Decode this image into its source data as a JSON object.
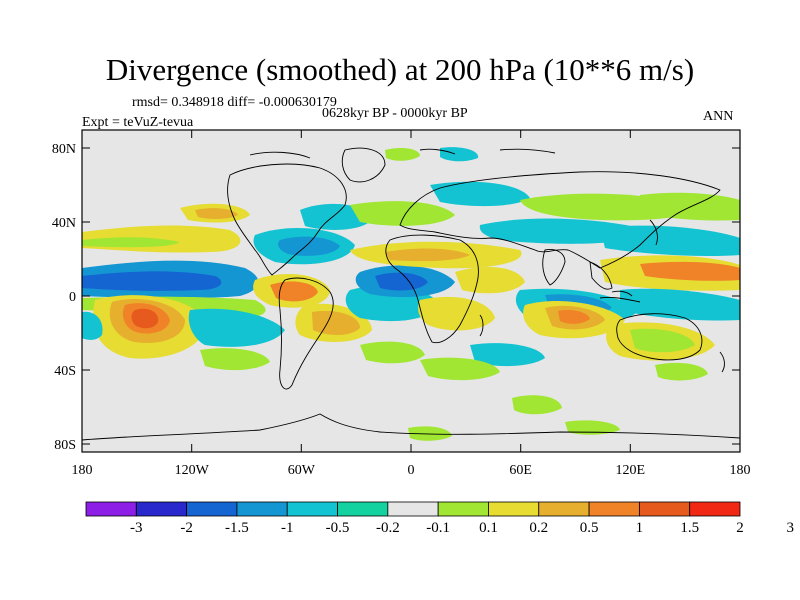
{
  "title": "Divergence (smoothed) at 200 hPa (10**6 m/s)",
  "stats": "rmsd= 0.348918 diff= -0.000630179",
  "period": "0628kyr BP - 0000kyr BP",
  "experiment": "Expt = teVuZ-tevua",
  "season": "ANN",
  "lat_labels": [
    "80N",
    "40N",
    "0",
    "40S",
    "80S"
  ],
  "lon_labels": [
    "180",
    "120W",
    "60W",
    "0",
    "60E",
    "120E",
    "180"
  ],
  "colorbar": {
    "colors": [
      "#8c1ee6",
      "#2828cd",
      "#1464d2",
      "#1496d2",
      "#14c3d2",
      "#14d2a0",
      "#e6e6e6",
      "#a0e632",
      "#e6dc32",
      "#e6af2d",
      "#f08228",
      "#e65a1e",
      "#f02814"
    ],
    "labels": [
      "-3",
      "-2",
      "-1.5",
      "-1",
      "-0.5",
      "-0.2",
      "-0.1",
      "0.1",
      "0.2",
      "0.5",
      "1",
      "1.5",
      "2",
      "3"
    ]
  }
}
